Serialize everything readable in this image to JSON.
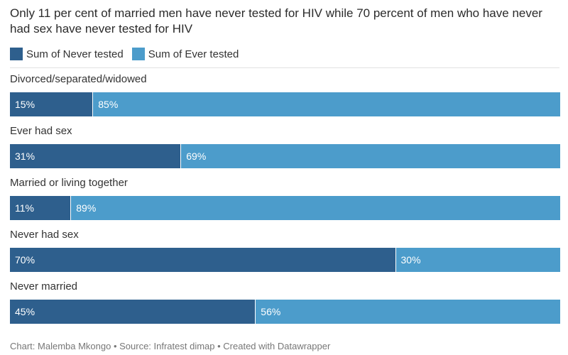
{
  "title": "Only 11 per cent of married men have never tested for HIV while 70 percent of men who have never had sex have never tested for HIV",
  "legend": [
    {
      "label": "Sum of Never tested",
      "color": "#2e5f8d"
    },
    {
      "label": "Sum of Ever tested",
      "color": "#4c9ccb"
    }
  ],
  "chart_data": {
    "type": "bar",
    "orientation": "horizontal",
    "stacked": true,
    "title": "Only 11 per cent of married men have never tested for HIV while 70 percent of men who have never had sex have never tested for HIV",
    "categories": [
      "Divorced/separated/widowed",
      "Ever had sex",
      "Married or living together",
      "Never had sex",
      "Never married"
    ],
    "series": [
      {
        "name": "Sum of Never tested",
        "color": "#2e5f8d",
        "values": [
          15,
          31,
          11,
          70,
          45
        ],
        "labels": [
          "15%",
          "31%",
          "11%",
          "70%",
          "45%"
        ]
      },
      {
        "name": "Sum of Ever tested",
        "color": "#4c9ccb",
        "values": [
          85,
          69,
          89,
          30,
          56
        ],
        "labels": [
          "85%",
          "69%",
          "89%",
          "30%",
          "56%"
        ]
      }
    ],
    "legend_position": "top-left",
    "grid": false
  },
  "footer": "Chart: Malemba Mkongo • Source: Infratest dimap • Created with Datawrapper"
}
